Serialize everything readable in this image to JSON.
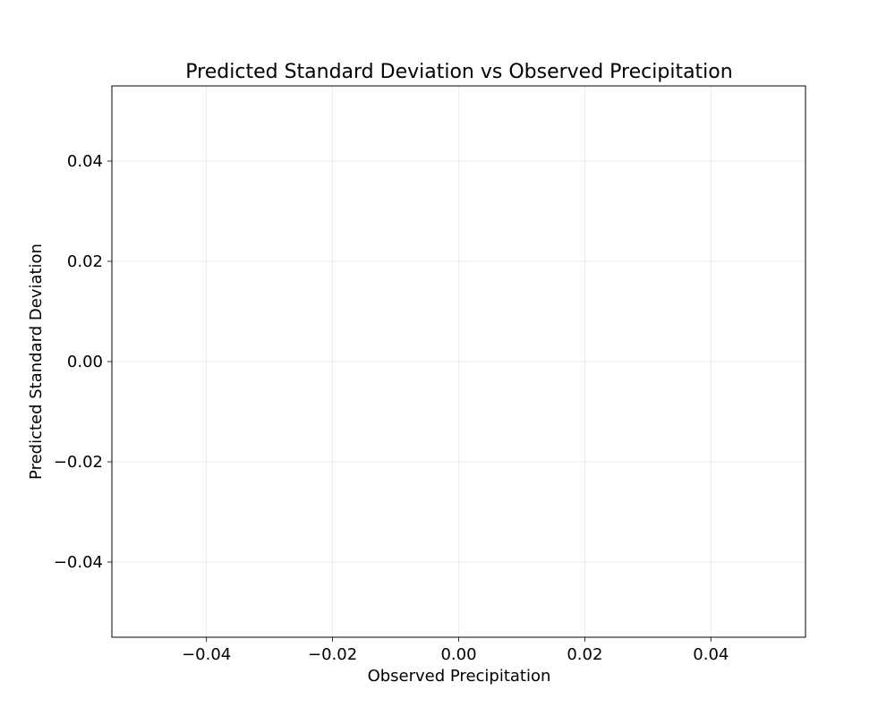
{
  "chart_data": {
    "type": "scatter",
    "title": "Predicted Standard Deviation vs Observed Precipitation",
    "xlabel": "Observed Precipitation",
    "ylabel": "Predicted Standard Deviation",
    "xlim": [
      -0.055,
      0.055
    ],
    "ylim": [
      -0.055,
      0.055
    ],
    "xticks": [
      -0.04,
      -0.02,
      0.0,
      0.02,
      0.04
    ],
    "yticks": [
      -0.04,
      -0.02,
      0.0,
      0.02,
      0.04
    ],
    "xtick_labels": [
      "−0.04",
      "−0.02",
      "0.00",
      "0.02",
      "0.04"
    ],
    "ytick_labels": [
      "−0.04",
      "−0.02",
      "0.00",
      "0.02",
      "0.04"
    ],
    "grid": true,
    "series": [
      {
        "x": [],
        "y": []
      }
    ]
  }
}
